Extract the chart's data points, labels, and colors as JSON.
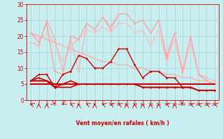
{
  "bg_color": "#c8eef0",
  "grid_color": "#a8d8dc",
  "xlabel": "Vent moyen/en rafales ( km/h )",
  "xlabel_color": "#cc0000",
  "tick_color": "#cc0000",
  "xlim": [
    -0.5,
    23.5
  ],
  "ylim": [
    0,
    30
  ],
  "yticks": [
    0,
    5,
    10,
    15,
    20,
    25,
    30
  ],
  "xticks": [
    0,
    1,
    2,
    3,
    4,
    5,
    6,
    7,
    8,
    9,
    10,
    11,
    12,
    13,
    14,
    15,
    16,
    17,
    18,
    19,
    20,
    21,
    22,
    23
  ],
  "series": [
    {
      "x": [
        0,
        1,
        2,
        3,
        4,
        5,
        6,
        7,
        8,
        9,
        10,
        11,
        12,
        13,
        14,
        15,
        16,
        17,
        18,
        19,
        20,
        21,
        22,
        23
      ],
      "y": [
        21,
        18,
        24,
        9,
        8,
        20,
        19,
        24,
        22,
        26,
        22,
        27,
        27,
        24,
        25,
        21,
        25,
        13,
        21,
        9,
        20,
        8,
        6,
        5
      ],
      "color": "#ff9999",
      "lw": 0.8,
      "marker": "D",
      "ms": 1.5,
      "zorder": 3
    },
    {
      "x": [
        0,
        1,
        2,
        3,
        4,
        5,
        6,
        7,
        8,
        9,
        10,
        11,
        12,
        13,
        14,
        15,
        16,
        17,
        18,
        19,
        20,
        21,
        22,
        23
      ],
      "y": [
        18,
        17,
        25,
        19,
        9,
        19,
        9,
        24,
        22,
        26,
        23,
        27,
        27,
        24,
        25,
        21,
        25,
        14,
        21,
        9,
        20,
        8,
        7,
        6
      ],
      "color": "#ffaaaa",
      "lw": 0.8,
      "marker": "D",
      "ms": 1.5,
      "zorder": 3
    },
    {
      "x": [
        0,
        1,
        2,
        3,
        4,
        5,
        6,
        7,
        8,
        9,
        10,
        11,
        12,
        13,
        14,
        15,
        16,
        17,
        18,
        19,
        20,
        21,
        22,
        23
      ],
      "y": [
        21,
        20,
        19,
        18,
        17,
        16,
        15,
        14,
        13,
        12,
        12,
        11,
        11,
        10,
        10,
        9,
        9,
        8,
        8,
        7,
        7,
        6,
        6,
        5
      ],
      "color": "#ffaaaa",
      "lw": 0.9,
      "marker": null,
      "ms": 0,
      "zorder": 2
    },
    {
      "x": [
        0,
        1,
        2,
        3,
        4,
        5,
        6,
        7,
        8,
        9,
        10,
        11,
        12,
        13,
        14,
        15,
        16,
        17,
        18,
        19,
        20,
        21,
        22,
        23
      ],
      "y": [
        21,
        19,
        21,
        18,
        12,
        17,
        19,
        22,
        21,
        23,
        21,
        24,
        24,
        21,
        22,
        17,
        22,
        12,
        19,
        8,
        18,
        8,
        6,
        5
      ],
      "color": "#ffbbbb",
      "lw": 0.9,
      "marker": null,
      "ms": 0,
      "zorder": 2
    },
    {
      "x": [
        0,
        1,
        2,
        3,
        4,
        5,
        6,
        7,
        8,
        9,
        10,
        11,
        12,
        13,
        14,
        15,
        16,
        17,
        18,
        19,
        20,
        21,
        22,
        23
      ],
      "y": [
        6,
        8,
        8,
        4,
        8,
        9,
        14,
        13,
        10,
        10,
        12,
        16,
        16,
        11,
        7,
        9,
        9,
        7,
        7,
        4,
        4,
        3,
        3,
        3
      ],
      "color": "#cc0000",
      "lw": 1.0,
      "marker": "D",
      "ms": 1.8,
      "zorder": 5
    },
    {
      "x": [
        0,
        1,
        2,
        3,
        4,
        5,
        6,
        7,
        8,
        9,
        10,
        11,
        12,
        13,
        14,
        15,
        16,
        17,
        18,
        19,
        20,
        21,
        22,
        23
      ],
      "y": [
        6,
        7,
        6,
        4,
        5,
        6,
        5,
        5,
        5,
        5,
        5,
        5,
        5,
        5,
        4,
        4,
        4,
        4,
        4,
        4,
        4,
        3,
        3,
        3
      ],
      "color": "#cc0000",
      "lw": 1.2,
      "marker": "D",
      "ms": 1.5,
      "zorder": 5
    },
    {
      "x": [
        0,
        1,
        2,
        3,
        4,
        5,
        6,
        7,
        8,
        9,
        10,
        11,
        12,
        13,
        14,
        15,
        16,
        17,
        18,
        19,
        20,
        21,
        22,
        23
      ],
      "y": [
        6,
        6,
        6,
        5,
        5,
        5,
        5,
        5,
        5,
        5,
        5,
        5,
        5,
        5,
        5,
        5,
        5,
        5,
        5,
        5,
        5,
        5,
        5,
        5
      ],
      "color": "#cc0000",
      "lw": 1.2,
      "marker": null,
      "ms": 0,
      "zorder": 4
    },
    {
      "x": [
        0,
        1,
        2,
        3,
        4,
        5,
        6,
        7,
        8,
        9,
        10,
        11,
        12,
        13,
        14,
        15,
        16,
        17,
        18,
        19,
        20,
        21,
        22,
        23
      ],
      "y": [
        6,
        6,
        6,
        4,
        4,
        4,
        5,
        5,
        5,
        5,
        5,
        5,
        5,
        5,
        4,
        4,
        4,
        4,
        4,
        4,
        4,
        3,
        3,
        3
      ],
      "color": "#cc0000",
      "lw": 1.2,
      "marker": null,
      "ms": 0,
      "zorder": 4
    },
    {
      "x": [
        0,
        1,
        2,
        3,
        4,
        5,
        6,
        7,
        8,
        9,
        10,
        11,
        12,
        13,
        14,
        15,
        16,
        17,
        18,
        19,
        20,
        21,
        22,
        23
      ],
      "y": [
        5,
        5,
        5,
        5,
        5,
        5,
        5,
        5,
        5,
        5,
        5,
        5,
        5,
        5,
        5,
        5,
        5,
        5,
        5,
        5,
        5,
        5,
        5,
        5
      ],
      "color": "#cc0000",
      "lw": 1.5,
      "marker": null,
      "ms": 0,
      "zorder": 4
    }
  ],
  "wind_symbols": [
    "y",
    "<",
    "<",
    "x",
    "z",
    "y",
    "<",
    "y",
    "<",
    "y",
    "y",
    "y",
    "<",
    "<",
    "<",
    "<",
    "<",
    "y",
    "<",
    "x",
    "y",
    "y",
    "y",
    "y"
  ],
  "wind_angles": [
    225,
    180,
    180,
    45,
    315,
    225,
    180,
    225,
    180,
    225,
    225,
    225,
    180,
    180,
    180,
    180,
    180,
    225,
    180,
    45,
    225,
    225,
    225,
    225
  ]
}
